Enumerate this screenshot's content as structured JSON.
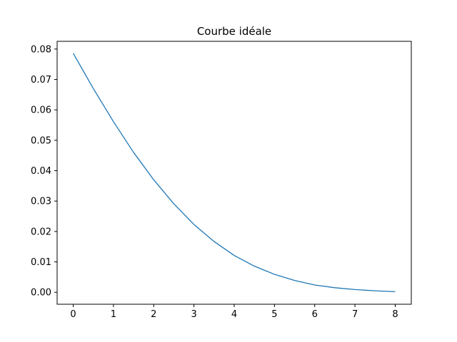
{
  "chart_data": {
    "type": "line",
    "title": "Courbe idéale",
    "xlabel": "",
    "ylabel": "",
    "xlim": [
      -0.4,
      8.4
    ],
    "ylim": [
      -0.00393,
      0.08254
    ],
    "grid": false,
    "x_ticks": [
      0,
      1,
      2,
      3,
      4,
      5,
      6,
      7,
      8
    ],
    "x_tick_labels": [
      "0",
      "1",
      "2",
      "3",
      "4",
      "5",
      "6",
      "7",
      "8"
    ],
    "y_ticks": [
      0.0,
      0.01,
      0.02,
      0.03,
      0.04,
      0.05,
      0.06,
      0.07,
      0.08
    ],
    "y_tick_labels": [
      "0.00",
      "0.01",
      "0.02",
      "0.03",
      "0.04",
      "0.05",
      "0.06",
      "0.07",
      "0.08"
    ],
    "series": [
      {
        "color": "#1f77b4",
        "x": [
          0,
          0.5,
          1,
          1.5,
          2,
          2.5,
          3,
          3.5,
          4,
          4.5,
          5,
          5.5,
          6,
          6.5,
          7,
          7.5,
          8
        ],
        "y": [
          0.0786,
          0.067,
          0.0561,
          0.046,
          0.037,
          0.0291,
          0.0223,
          0.0167,
          0.0121,
          0.0086,
          0.0059,
          0.0039,
          0.0024,
          0.0015,
          0.0009,
          0.0005,
          0.0002
        ]
      }
    ]
  }
}
